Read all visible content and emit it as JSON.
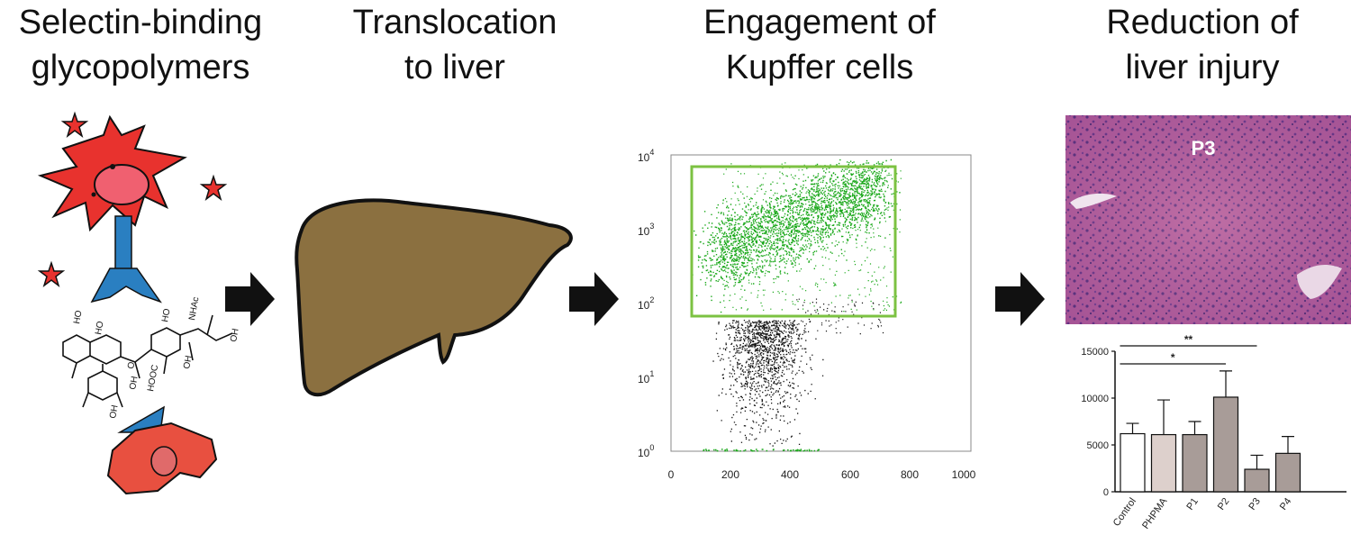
{
  "titles": {
    "step1": [
      "Selectin-binding",
      "glycopolymers"
    ],
    "step2": [
      "Translocation",
      "to liver"
    ],
    "step3": [
      "Engagement of",
      "Kupffer cells"
    ],
    "step4": [
      "Reduction of",
      "liver injury"
    ]
  },
  "histology": {
    "label": "P3"
  },
  "flow_plot": {
    "x_ticks": [
      "0",
      "200",
      "400",
      "600",
      "800",
      "1000"
    ],
    "y_ticks": [
      {
        "base": "10",
        "exp": "4"
      },
      {
        "base": "10",
        "exp": "3"
      },
      {
        "base": "10",
        "exp": "2"
      },
      {
        "base": "10",
        "exp": "1"
      },
      {
        "base": "10",
        "exp": "0"
      }
    ],
    "gated_color": "#1aa81a",
    "ungated_color": "#111111",
    "gate_color": "#7cc242"
  },
  "colors": {
    "cell": "#e8322e",
    "cell2": "#e85040",
    "nucleus": "#f06070",
    "receptor": "#2a7fc1",
    "liver": "#8b7040",
    "arrow": "#111111",
    "bar_control": "#ffffff",
    "bar_phpma": "#ddd0cc",
    "bar_polymer": "#a89c98"
  },
  "chart_data": {
    "type": "bar",
    "categories": [
      "Control",
      "PHPMA",
      "P1",
      "P2",
      "P3",
      "P4"
    ],
    "values": [
      6200,
      6100,
      6100,
      10100,
      2400,
      4100
    ],
    "errors": [
      1100,
      3700,
      1400,
      2800,
      1500,
      1800
    ],
    "ylim": [
      0,
      15000
    ],
    "y_ticks": [
      "15000",
      "10000",
      "5000",
      "0"
    ],
    "y_tick_values": [
      15000,
      10000,
      5000,
      0
    ],
    "significance": [
      {
        "from": "Control",
        "to": "P3",
        "label": "**"
      },
      {
        "from": "Control",
        "to": "P2",
        "label": "*"
      }
    ],
    "xlabel": "",
    "ylabel": "",
    "title": ""
  }
}
